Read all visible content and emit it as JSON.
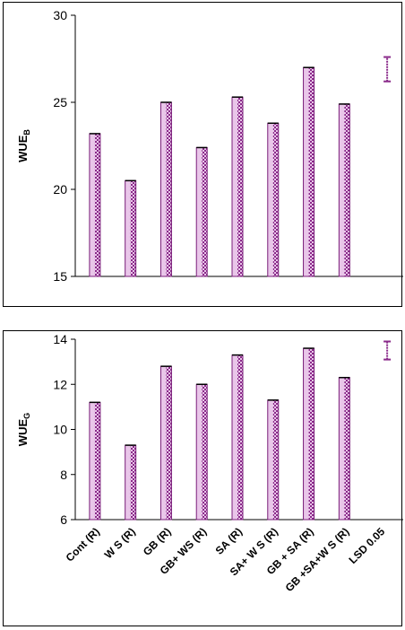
{
  "chart_data": [
    {
      "type": "bar",
      "ylabel": "WUE",
      "ylabel_sub": "B",
      "ylim": [
        15,
        30
      ],
      "yticks": [
        15,
        20,
        25,
        30
      ],
      "categories": [
        "Cont (R)",
        "W S (R)",
        "GB (R)",
        "GB+ WS (R)",
        "SA (R)",
        "SA+ W S (R)",
        "GB + SA (R)",
        "GB +SA+W S (R)",
        "LSD 0.05"
      ],
      "values": [
        23.2,
        20.5,
        25.0,
        22.4,
        25.3,
        23.8,
        27.0,
        24.9,
        null
      ],
      "lsd_error_bar": [
        26.2,
        27.6
      ],
      "show_category_labels": false
    },
    {
      "type": "bar",
      "ylabel": "WUE",
      "ylabel_sub": "G",
      "ylim": [
        6,
        14
      ],
      "yticks": [
        6,
        8,
        10,
        12,
        14
      ],
      "categories": [
        "Cont (R)",
        "W S (R)",
        "GB (R)",
        "GB+ WS (R)",
        "SA (R)",
        "SA+ W S (R)",
        "GB + SA (R)",
        "GB +SA+W S (R)",
        "LSD 0.05"
      ],
      "values": [
        11.2,
        9.3,
        12.8,
        12.0,
        13.3,
        11.3,
        13.6,
        12.3,
        null
      ],
      "lsd_error_bar": [
        13.1,
        13.9
      ],
      "show_category_labels": true
    }
  ],
  "colors": {
    "bar_dark": "#7a1f7a",
    "bar_light": "#e9c6e9",
    "bar_mid": "#b05ab0",
    "axis": "#000000",
    "error_bar": "#8a2a8a"
  }
}
